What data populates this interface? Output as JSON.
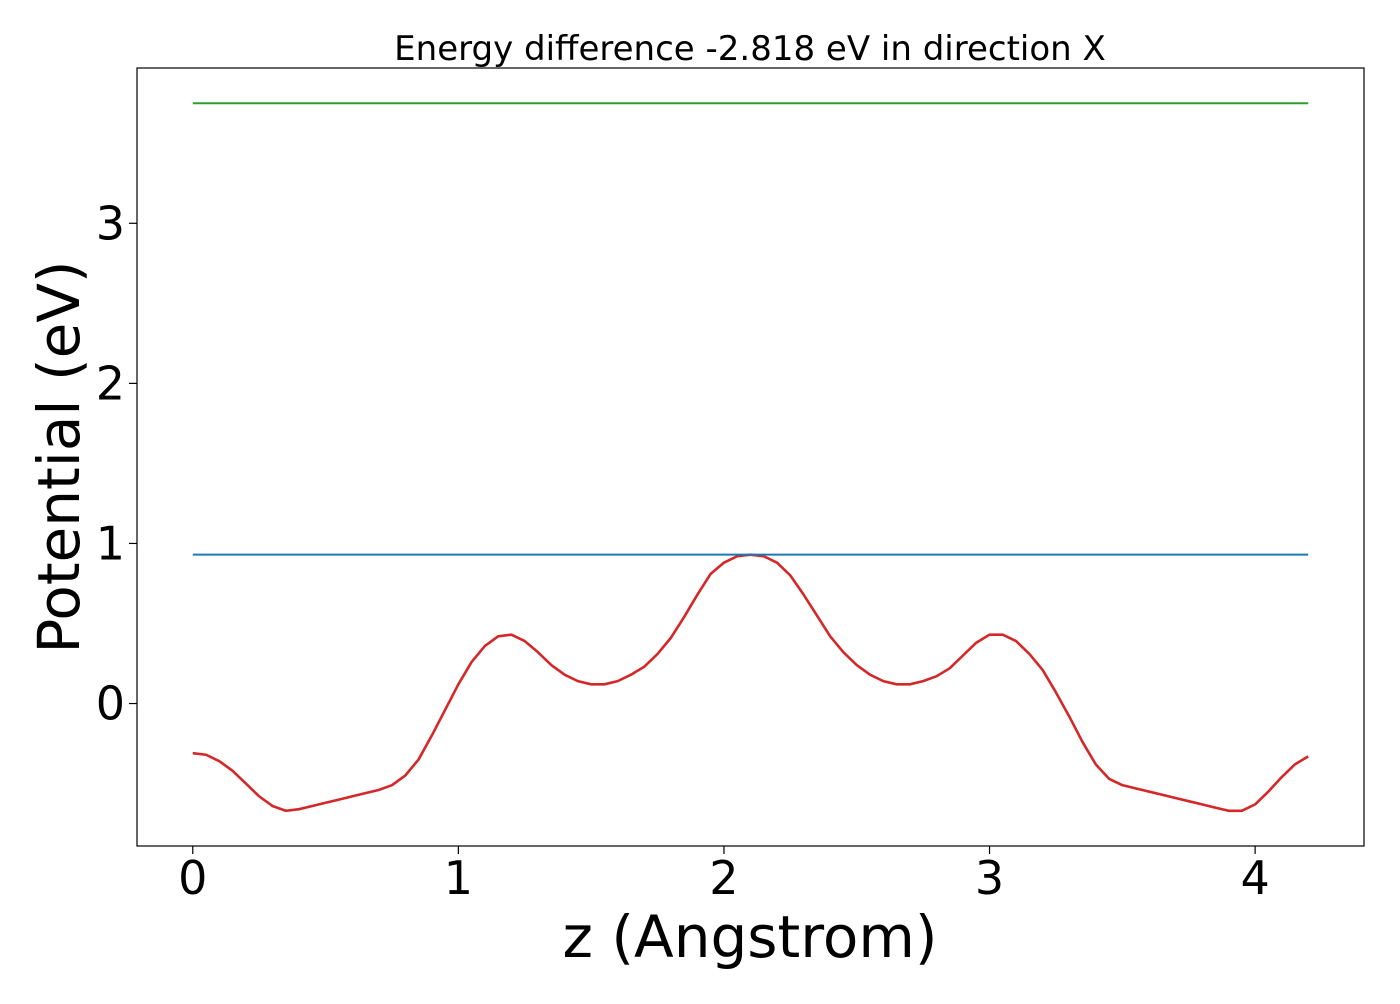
{
  "chart_data": {
    "type": "line",
    "title": "Energy difference -2.818 eV in direction X",
    "xlabel": "z (Angstrom)",
    "ylabel": "Potential (eV)",
    "xlim": [
      -0.21,
      4.41
    ],
    "ylim": [
      -0.89,
      3.97
    ],
    "xticks": [
      0,
      1,
      2,
      3,
      4
    ],
    "xtick_labels": [
      "0",
      "1",
      "2",
      "3",
      "4"
    ],
    "yticks": [
      0,
      1,
      2,
      3
    ],
    "ytick_labels": [
      "0",
      "1",
      "2",
      "3"
    ],
    "grid": false,
    "legend": "none",
    "series": [
      {
        "color": "#d62728",
        "x": [
          0.0,
          0.05,
          0.1,
          0.15,
          0.2,
          0.25,
          0.3,
          0.35,
          0.4,
          0.45,
          0.5,
          0.55,
          0.6,
          0.65,
          0.7,
          0.75,
          0.8,
          0.85,
          0.9,
          0.95,
          1.0,
          1.05,
          1.1,
          1.15,
          1.2,
          1.25,
          1.3,
          1.35,
          1.4,
          1.45,
          1.5,
          1.55,
          1.6,
          1.65,
          1.7,
          1.75,
          1.8,
          1.85,
          1.9,
          1.95,
          2.0,
          2.05,
          2.1,
          2.15,
          2.2,
          2.25,
          2.3,
          2.35,
          2.4,
          2.45,
          2.5,
          2.55,
          2.6,
          2.65,
          2.7,
          2.75,
          2.8,
          2.85,
          2.9,
          2.95,
          3.0,
          3.05,
          3.1,
          3.15,
          3.2,
          3.25,
          3.3,
          3.35,
          3.4,
          3.45,
          3.5,
          3.55,
          3.6,
          3.65,
          3.7,
          3.75,
          3.8,
          3.85,
          3.9,
          3.95,
          4.0,
          4.05,
          4.1,
          4.15,
          4.2
        ],
        "y": [
          -0.31,
          -0.32,
          -0.36,
          -0.42,
          -0.5,
          -0.58,
          -0.64,
          -0.67,
          -0.66,
          -0.64,
          -0.62,
          -0.6,
          -0.58,
          -0.56,
          -0.54,
          -0.51,
          -0.45,
          -0.35,
          -0.2,
          -0.04,
          0.12,
          0.26,
          0.36,
          0.42,
          0.43,
          0.39,
          0.32,
          0.24,
          0.18,
          0.14,
          0.12,
          0.12,
          0.14,
          0.18,
          0.23,
          0.31,
          0.41,
          0.54,
          0.68,
          0.81,
          0.88,
          0.92,
          0.93,
          0.92,
          0.88,
          0.8,
          0.68,
          0.55,
          0.42,
          0.32,
          0.24,
          0.18,
          0.14,
          0.12,
          0.12,
          0.14,
          0.17,
          0.22,
          0.3,
          0.38,
          0.43,
          0.43,
          0.39,
          0.31,
          0.21,
          0.07,
          -0.08,
          -0.24,
          -0.38,
          -0.47,
          -0.51,
          -0.53,
          -0.55,
          -0.57,
          -0.59,
          -0.61,
          -0.63,
          -0.65,
          -0.67,
          -0.67,
          -0.63,
          -0.55,
          -0.46,
          -0.38,
          -0.33
        ]
      },
      {
        "color": "#1f77b4",
        "x": [
          0.0,
          4.2
        ],
        "y": [
          0.93,
          0.93
        ]
      },
      {
        "color": "#2ca02c",
        "x": [
          0.0,
          4.2
        ],
        "y": [
          3.75,
          3.75
        ]
      }
    ]
  }
}
